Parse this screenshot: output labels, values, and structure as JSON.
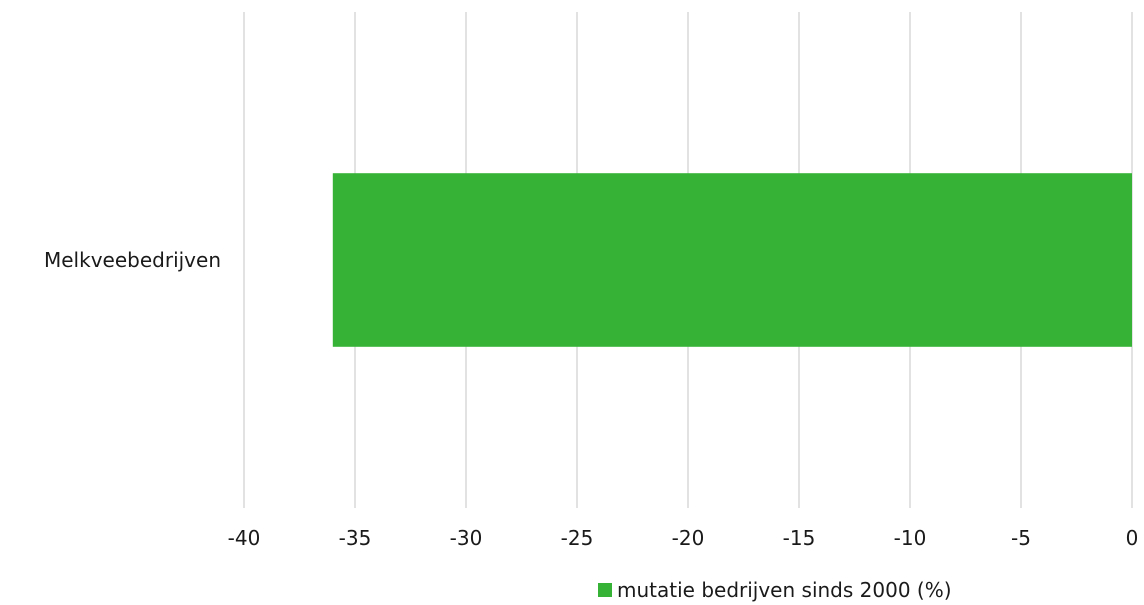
{
  "chart_data": {
    "type": "bar",
    "orientation": "horizontal",
    "categories": [
      "Melkveebedrijven"
    ],
    "series": [
      {
        "name": "mutatie bedrijven sinds 2000 (%)",
        "values": [
          -36
        ],
        "color": "#36b336"
      }
    ],
    "xlim": [
      -40,
      0
    ],
    "xticks": [
      -40,
      -35,
      -30,
      -25,
      -20,
      -15,
      -10,
      -5,
      0
    ],
    "xtick_labels": [
      "-40",
      "-35",
      "-30",
      "-25",
      "-20",
      "-15",
      "-10",
      "-5",
      "0"
    ],
    "grid": "vertical",
    "legend_position": "bottom",
    "title": "",
    "xlabel": "",
    "ylabel": ""
  }
}
